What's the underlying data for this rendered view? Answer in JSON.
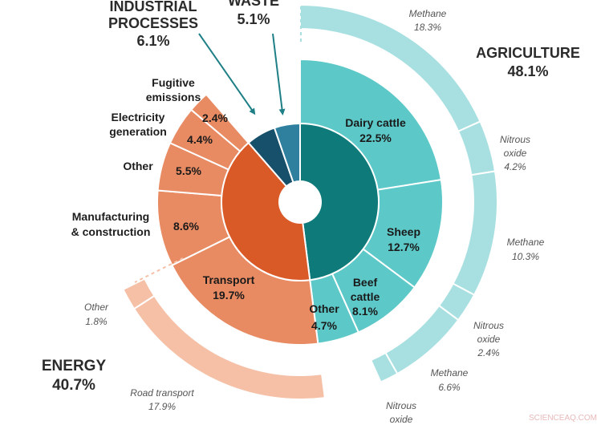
{
  "chart_data": {
    "type": "sunburst-donut",
    "title": "",
    "sectors": [
      {
        "name": "AGRICULTURE",
        "value_label": "48.1%",
        "color": "#0f7a7a",
        "mid_color": "#5cc8c8",
        "outer_color": "#a8e0e2",
        "subcategories": [
          {
            "name": "Dairy cattle",
            "percent": 22.5,
            "label": "Dairy cattle",
            "value_label": "22.5%",
            "gases": [
              {
                "name": "Methane",
                "percent": 18.3,
                "label": "Methane",
                "value_label": "18.3%"
              },
              {
                "name": "Nitrous oxide",
                "percent": 4.2,
                "label": "Nitrous oxide",
                "value_label": "4.2%"
              }
            ]
          },
          {
            "name": "Sheep",
            "percent": 12.7,
            "label": "Sheep",
            "value_label": "12.7%",
            "gases": [
              {
                "name": "Methane",
                "percent": 10.3,
                "label": "Methane",
                "value_label": "10.3%"
              },
              {
                "name": "Nitrous oxide",
                "percent": 2.4,
                "label": "Nitrous oxide",
                "value_label": "2.4%"
              }
            ]
          },
          {
            "name": "Beef cattle",
            "percent": 8.1,
            "label": "Beef cattle",
            "value_label": "8.1%",
            "gases": [
              {
                "name": "Methane",
                "percent": 6.6,
                "label": "Methane",
                "value_label": "6.6%"
              },
              {
                "name": "Nitrous oxide",
                "percent": 1.5,
                "label": "Nitrous oxide",
                "value_label": ""
              }
            ]
          },
          {
            "name": "Other",
            "percent": 4.7,
            "label": "Other",
            "value_label": "4.7%",
            "gases": []
          }
        ]
      },
      {
        "name": "ENERGY",
        "value_label": "40.7%",
        "color": "#d95a27",
        "mid_color": "#e88a62",
        "outer_color": "#f5c0a6",
        "subcategories": [
          {
            "name": "Transport",
            "percent": 19.7,
            "label": "Transport",
            "value_label": "19.7%",
            "detail": [
              {
                "name": "Road transport",
                "percent": 17.9,
                "label": "Road transport",
                "value_label": "17.9%"
              },
              {
                "name": "Other",
                "percent": 1.8,
                "label": "Other",
                "value_label": "1.8%"
              }
            ]
          },
          {
            "name": "Manufacturing & construction",
            "percent": 8.6,
            "label": "Manufacturing & construction",
            "value_label": "8.6%"
          },
          {
            "name": "Other",
            "percent": 5.5,
            "label": "Other",
            "value_label": "5.5%"
          },
          {
            "name": "Electricity generation",
            "percent": 4.4,
            "label": "Electricity generation",
            "value_label": "4.4%"
          },
          {
            "name": "Fugitive emissions",
            "percent": 2.4,
            "label": "Fugitive emissions",
            "value_label": "2.4%"
          }
        ]
      },
      {
        "name": "INDUSTRIAL PROCESSES",
        "value_label": "6.1%",
        "percent": 6.1,
        "color": "#17506b"
      },
      {
        "name": "WASTE",
        "value_label": "5.1%",
        "percent": 5.1,
        "color": "#2f7f9e"
      }
    ]
  },
  "labels": {
    "agriculture_title": "AGRICULTURE",
    "agriculture_value": "48.1%",
    "energy_title": "ENERGY",
    "energy_value": "40.7%",
    "industrial_title_1": "INDUSTRIAL",
    "industrial_title_2": "PROCESSES",
    "industrial_value": "6.1%",
    "waste_title": "WASTE",
    "waste_value": "5.1%",
    "dairy": "Dairy cattle",
    "dairy_value": "22.5%",
    "sheep": "Sheep",
    "sheep_value": "12.7%",
    "beef_1": "Beef",
    "beef_2": "cattle",
    "beef_value": "8.1%",
    "agri_other": "Other",
    "agri_other_value": "4.7%",
    "transport": "Transport",
    "transport_value": "19.7%",
    "manuf_1": "Manufacturing",
    "manuf_2": "& construction",
    "manuf_value": "8.6%",
    "energy_other": "Other",
    "energy_other_value": "5.5%",
    "elec_1": "Electricity",
    "elec_2": "generation",
    "elec_value": "4.4%",
    "fug_1": "Fugitive",
    "fug_2": "emissions",
    "fug_value": "2.4%",
    "methane_dairy": "Methane",
    "methane_dairy_value": "18.3%",
    "n2o_dairy_1": "Nitrous",
    "n2o_dairy_2": "oxide",
    "n2o_dairy_value": "4.2%",
    "methane_sheep": "Methane",
    "methane_sheep_value": "10.3%",
    "n2o_sheep_1": "Nitrous",
    "n2o_sheep_2": "oxide",
    "n2o_sheep_value": "2.4%",
    "methane_beef": "Methane",
    "methane_beef_value": "6.6%",
    "n2o_beef_1": "Nitrous",
    "n2o_beef_2": "oxide",
    "road": "Road transport",
    "road_value": "17.9%",
    "transport_other": "Other",
    "transport_other_value": "1.8%",
    "watermark": "SCIENCEAQ.COM"
  }
}
